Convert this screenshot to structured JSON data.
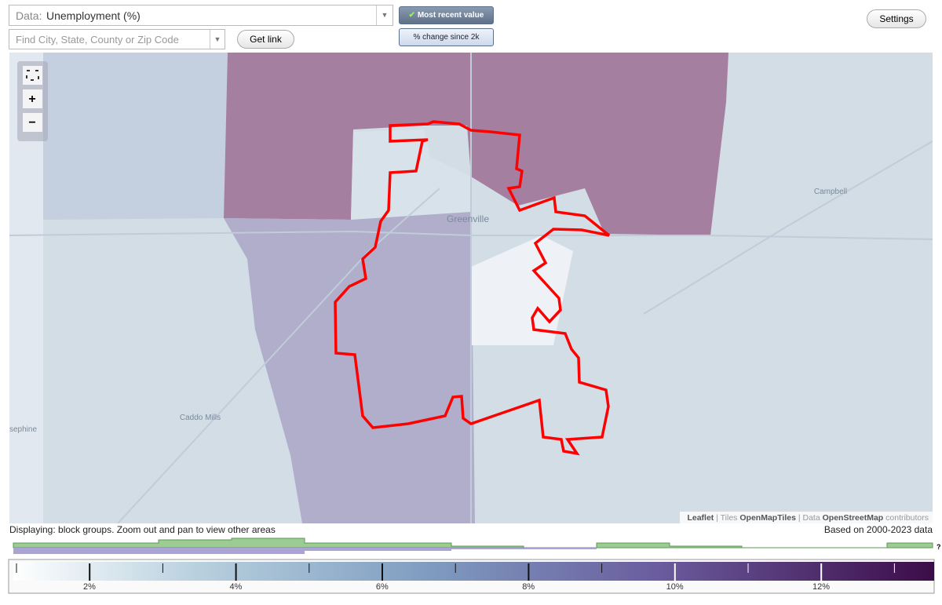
{
  "controls": {
    "data_label": "Data:",
    "data_value": "Unemployment (%)",
    "search_placeholder": "Find City, State, County or Zip Code",
    "get_link": "Get link",
    "most_recent": "Most recent value",
    "change": "% change since 2k",
    "settings": "Settings"
  },
  "map": {
    "places": [
      "Greenville",
      "Campbell",
      "Caddo Mills",
      "sephine"
    ],
    "attribution": [
      "Leaflet",
      " | Tiles ",
      "OpenMapTiles",
      " | Data ",
      "OpenStreetMap",
      " contributors"
    ]
  },
  "status": {
    "displaying": "Displaying: block groups. Zoom out and pan to view other areas",
    "based_on": "Based on 2000-2023 data"
  },
  "legend": {
    "ticks": [
      "2%",
      "4%",
      "6%",
      "8%",
      "10%",
      "12%"
    ],
    "help": "?"
  }
}
